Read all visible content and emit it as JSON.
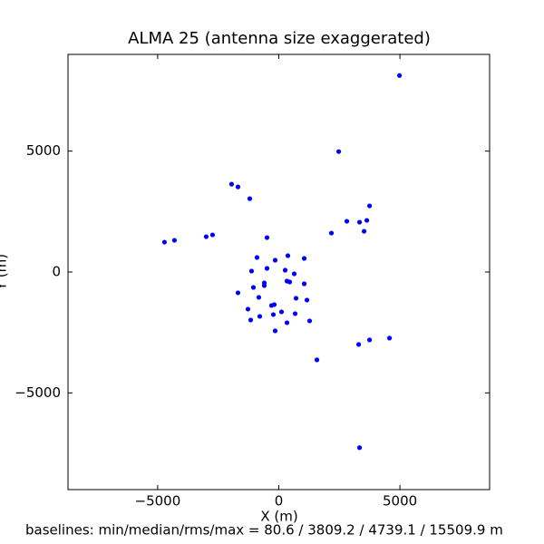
{
  "chart_data": {
    "type": "scatter",
    "title": "ALMA 25 (antenna size exaggerated)",
    "x_label": "X (m)",
    "y_label": "Y (m)",
    "caption": "baselines: min/median/rms/max = 80.6 / 3809.2 / 4739.1 / 15509.9 m",
    "color": "#0000ff",
    "xlim": [
      -8700,
      8700
    ],
    "ylim": [
      -9000,
      9000
    ],
    "xticks": [
      {
        "value": -5000,
        "label": "−5000"
      },
      0,
      5000
    ],
    "yticks": [
      {
        "value": -5000,
        "label": "−5000"
      },
      0,
      5000
    ],
    "x": [
      4980,
      2472,
      -1947,
      -1685,
      -1198,
      3745,
      2809,
      3333,
      3633,
      3520,
      2172,
      -487,
      -4719,
      -4307,
      -2996,
      -2734,
      -899,
      375,
      1049,
      -150,
      -1124,
      -487,
      262,
      637,
      337,
      449,
      -599,
      -599,
      -1049,
      1049,
      -1685,
      -824,
      712,
      1161,
      -187,
      -300,
      -1273,
      112,
      -225,
      -786,
      674,
      -1161,
      1273,
      337,
      -150,
      4569,
      3745,
      3296,
      1573,
      3333
    ],
    "values": [
      8127,
      4981,
      3633,
      3520,
      3033,
      2734,
      2097,
      2060,
      2135,
      1685,
      1610,
      1423,
      1236,
      1311,
      1461,
      1535,
      599,
      674,
      562,
      487,
      37,
      150,
      75,
      -75,
      -375,
      -412,
      -449,
      -562,
      -637,
      -487,
      -861,
      -1049,
      -1086,
      -1161,
      -1348,
      -1386,
      -1535,
      -1648,
      -1760,
      -1835,
      -1723,
      -1985,
      -2022,
      -2097,
      -2434,
      -2734,
      -2809,
      -2996,
      -3633,
      -7265
    ]
  }
}
